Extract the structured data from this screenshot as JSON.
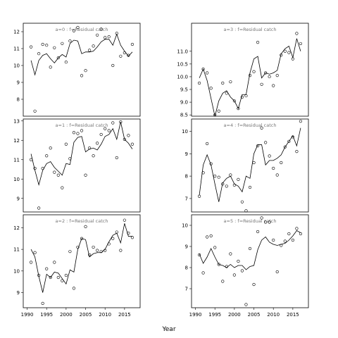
{
  "figure": {
    "xlabel": "Year"
  },
  "chart_data": [
    {
      "type": "scatter",
      "title": "a=0 : f=Residual catch",
      "xlim": [
        1989,
        2019
      ],
      "ylim": [
        7,
        12.5
      ],
      "xticks": [
        1990,
        1995,
        2000,
        2005,
        2010,
        2015
      ],
      "yticks": [
        8,
        9,
        10,
        11,
        12
      ],
      "x": [
        1991,
        1992,
        1993,
        1994,
        1995,
        1996,
        1997,
        1998,
        1999,
        2000,
        2001,
        2002,
        2003,
        2004,
        2005,
        2006,
        2007,
        2008,
        2009,
        2010,
        2011,
        2012,
        2013,
        2014,
        2015,
        2016,
        2017
      ],
      "fit": [
        10.3,
        9.45,
        10.3,
        10.6,
        10.7,
        10.4,
        10.15,
        10.45,
        10.65,
        10.5,
        11.3,
        11.5,
        11.45,
        10.7,
        10.8,
        10.8,
        10.85,
        11.1,
        11.4,
        11.55,
        11.55,
        11.2,
        11.85,
        11.2,
        10.85,
        10.55,
        10.8
      ],
      "observed": [
        11.1,
        7.3,
        10.7,
        11.25,
        11.2,
        9.9,
        11.05,
        10.45,
        11.3,
        10.2,
        11.45,
        12.05,
        12.25,
        9.4,
        9.7,
        10.9,
        11.15,
        11.8,
        12.15,
        11.65,
        11.7,
        10.0,
        11.9,
        10.55,
        10.75,
        10.6,
        11.25
      ]
    },
    {
      "type": "scatter",
      "title": "a=3 : f=Residual catch",
      "xlim": [
        1989,
        2019
      ],
      "ylim": [
        8.45,
        12.1
      ],
      "xticks": [
        1990,
        1995,
        2000,
        2005,
        2010,
        2015
      ],
      "yticks": [
        8.5,
        9.0,
        9.5,
        10.0,
        10.5,
        11.0
      ],
      "x": [
        1991,
        1992,
        1993,
        1994,
        1995,
        1996,
        1997,
        1998,
        1999,
        2000,
        2001,
        2002,
        2003,
        2004,
        2005,
        2006,
        2007,
        2008,
        2009,
        2010,
        2011,
        2012,
        2013,
        2014,
        2015,
        2016,
        2017
      ],
      "fit": [
        9.95,
        10.3,
        9.85,
        9.15,
        8.45,
        9.05,
        9.35,
        9.45,
        9.2,
        9.05,
        8.75,
        9.3,
        9.3,
        10.15,
        10.7,
        10.8,
        9.95,
        10.15,
        10.1,
        10.15,
        10.25,
        10.9,
        11.1,
        11.2,
        10.75,
        11.5,
        11.0
      ],
      "observed": [
        9.75,
        10.3,
        10.15,
        9.55,
        8.5,
        8.65,
        9.75,
        9.35,
        9.8,
        9.05,
        8.75,
        9.2,
        9.25,
        10.05,
        10.2,
        11.35,
        9.7,
        10.15,
        10.0,
        9.65,
        10.05,
        10.85,
        11.0,
        10.95,
        10.7,
        11.7,
        11.3
      ]
    },
    {
      "type": "scatter",
      "title": "a=1 : f=Residual catch",
      "xlim": [
        1989,
        2019
      ],
      "ylim": [
        8.3,
        13.1
      ],
      "xticks": [
        1990,
        1995,
        2000,
        2005,
        2010,
        2015
      ],
      "yticks": [
        9,
        10,
        11,
        12,
        13
      ],
      "x": [
        1991,
        1992,
        1993,
        1994,
        1995,
        1996,
        1997,
        1998,
        1999,
        2000,
        2001,
        2002,
        2003,
        2004,
        2005,
        2006,
        2007,
        2008,
        2009,
        2010,
        2011,
        2012,
        2013,
        2014,
        2015,
        2016,
        2017
      ],
      "fit": [
        11.3,
        10.45,
        9.7,
        10.45,
        10.8,
        10.9,
        10.6,
        10.4,
        10.2,
        10.8,
        10.75,
        11.9,
        12.15,
        12.2,
        11.4,
        11.55,
        11.6,
        11.5,
        11.8,
        12.2,
        12.3,
        12.6,
        12.05,
        12.95,
        12.05,
        11.85,
        11.55
      ],
      "observed": [
        11.0,
        10.55,
        8.5,
        10.55,
        11.2,
        11.6,
        10.35,
        10.2,
        9.55,
        11.8,
        11.05,
        12.4,
        12.35,
        12.5,
        10.2,
        11.6,
        11.2,
        11.85,
        12.3,
        12.6,
        12.5,
        12.9,
        11.1,
        12.95,
        12.05,
        12.25,
        11.8
      ]
    },
    {
      "type": "scatter",
      "title": "a=4 : f=Residual catch",
      "xlim": [
        1989,
        2019
      ],
      "ylim": [
        6.4,
        10.55
      ],
      "xticks": [
        1990,
        1995,
        2000,
        2005,
        2010,
        2015
      ],
      "yticks": [
        7,
        8,
        9,
        10
      ],
      "x": [
        1991,
        1992,
        1993,
        1994,
        1995,
        1996,
        1997,
        1998,
        1999,
        2000,
        2001,
        2002,
        2003,
        2004,
        2005,
        2006,
        2007,
        2008,
        2009,
        2010,
        2011,
        2012,
        2013,
        2014,
        2015,
        2016,
        2017
      ],
      "fit": [
        7.15,
        8.5,
        8.95,
        8.5,
        7.65,
        6.85,
        7.7,
        7.9,
        8.0,
        7.65,
        7.55,
        7.3,
        8.0,
        7.9,
        9.0,
        9.4,
        9.4,
        8.5,
        8.7,
        8.7,
        8.8,
        8.95,
        9.3,
        9.55,
        9.8,
        9.35,
        10.15
      ],
      "observed": [
        7.1,
        8.15,
        9.45,
        8.55,
        8.0,
        7.95,
        7.65,
        7.55,
        8.05,
        7.6,
        7.85,
        6.85,
        6.45,
        7.5,
        8.6,
        9.35,
        10.15,
        9.5,
        8.9,
        8.35,
        8.05,
        8.6,
        9.3,
        9.55,
        9.75,
        9.1,
        10.45
      ]
    },
    {
      "type": "scatter",
      "title": "a=2 : f=Residual catch",
      "xlim": [
        1989,
        2019
      ],
      "ylim": [
        8.3,
        12.6
      ],
      "xticks": [
        1990,
        1995,
        2000,
        2005,
        2010,
        2015
      ],
      "yticks": [
        9,
        10,
        11,
        12
      ],
      "x": [
        1991,
        1992,
        1993,
        1994,
        1995,
        1996,
        1997,
        1998,
        1999,
        2000,
        2001,
        2002,
        2003,
        2004,
        2005,
        2006,
        2007,
        2008,
        2009,
        2010,
        2011,
        2012,
        2013,
        2014,
        2015,
        2016,
        2017
      ],
      "fit": [
        11.0,
        10.65,
        9.75,
        9.0,
        9.85,
        9.7,
        9.95,
        9.9,
        9.65,
        9.4,
        10.05,
        9.95,
        11.0,
        11.5,
        11.45,
        10.65,
        10.8,
        10.85,
        10.85,
        11.0,
        11.35,
        11.65,
        11.75,
        11.3,
        12.2,
        11.6,
        11.6
      ],
      "observed": [
        10.4,
        10.85,
        9.8,
        8.5,
        10.1,
        9.7,
        10.4,
        9.7,
        9.55,
        9.8,
        10.9,
        9.2,
        11.1,
        11.5,
        12.05,
        10.75,
        11.1,
        10.95,
        10.9,
        10.95,
        11.25,
        11.5,
        11.8,
        10.95,
        12.35,
        11.75,
        11.55
      ]
    },
    {
      "type": "scatter",
      "title": "a=5 : f=Residual catch",
      "xlim": [
        1989,
        2019
      ],
      "ylim": [
        6.1,
        10.5
      ],
      "xticks": [
        1990,
        1995,
        2000,
        2005,
        2010,
        2015
      ],
      "yticks": [
        7,
        8,
        9,
        10
      ],
      "x": [
        1991,
        1992,
        1993,
        1994,
        1995,
        1996,
        1997,
        1998,
        1999,
        2000,
        2001,
        2002,
        2003,
        2004,
        2005,
        2006,
        2007,
        2008,
        2009,
        2010,
        2011,
        2012,
        2013,
        2014,
        2015,
        2016,
        2017
      ],
      "fit": [
        8.65,
        8.2,
        8.5,
        8.9,
        8.5,
        8.15,
        8.1,
        8.0,
        8.15,
        8.0,
        8.1,
        8.1,
        7.9,
        8.05,
        8.1,
        8.85,
        9.3,
        9.45,
        9.2,
        9.1,
        9.05,
        9.1,
        9.15,
        9.3,
        9.5,
        9.75,
        9.65
      ],
      "observed": [
        8.6,
        7.75,
        9.45,
        9.5,
        8.95,
        8.15,
        7.35,
        8.05,
        8.65,
        7.65,
        8.3,
        7.85,
        6.25,
        8.9,
        7.2,
        9.7,
        10.35,
        10.15,
        10.15,
        9.3,
        7.8,
        9.05,
        9.25,
        9.6,
        9.3,
        9.85,
        9.6
      ]
    }
  ]
}
